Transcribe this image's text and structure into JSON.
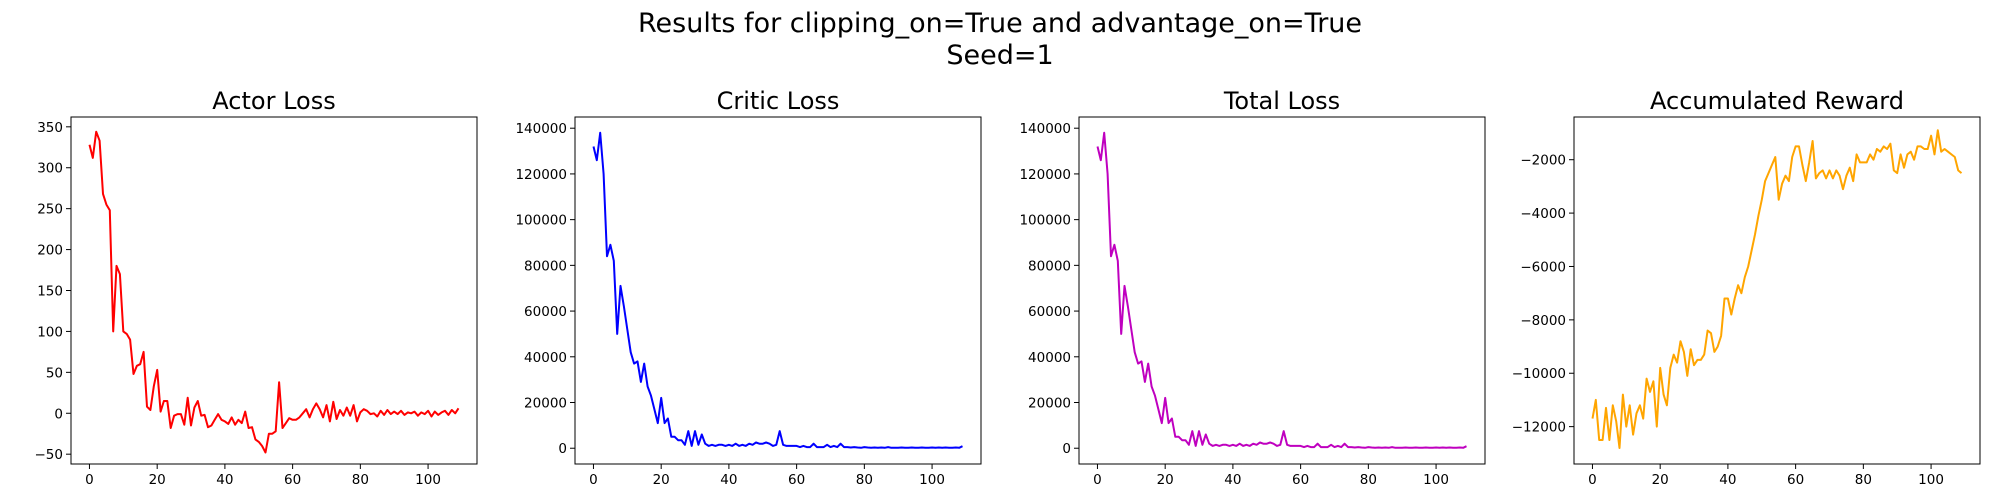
{
  "figure": {
    "title_line1": "Results for clipping_on=True and advantage_on=True",
    "title_line2": "Seed=1"
  },
  "chart_data": [
    {
      "type": "line",
      "title": "Actor Loss",
      "xlabel": "",
      "ylabel": "",
      "color": "#ff0000",
      "xlim": [
        -5.45,
        114.45
      ],
      "ylim": [
        -62,
        362
      ],
      "xticks": [
        0,
        20,
        40,
        60,
        80,
        100
      ],
      "yticks": [
        -50,
        0,
        50,
        100,
        150,
        200,
        250,
        300,
        350
      ],
      "grid": false,
      "x": [
        0,
        1,
        2,
        3,
        4,
        5,
        6,
        7,
        8,
        9,
        10,
        11,
        12,
        13,
        14,
        15,
        16,
        17,
        18,
        19,
        20,
        21,
        22,
        23,
        24,
        25,
        26,
        27,
        28,
        29,
        30,
        31,
        32,
        33,
        34,
        35,
        36,
        37,
        38,
        39,
        40,
        41,
        42,
        43,
        44,
        45,
        46,
        47,
        48,
        49,
        50,
        51,
        52,
        53,
        54,
        55,
        56,
        57,
        58,
        59,
        60,
        61,
        62,
        63,
        64,
        65,
        66,
        67,
        68,
        69,
        70,
        71,
        72,
        73,
        74,
        75,
        76,
        77,
        78,
        79,
        80,
        81,
        82,
        83,
        84,
        85,
        86,
        87,
        88,
        89,
        90,
        91,
        92,
        93,
        94,
        95,
        96,
        97,
        98,
        99,
        100,
        101,
        102,
        103,
        104,
        105,
        106,
        107,
        108,
        109
      ],
      "values": [
        328,
        312,
        344,
        333,
        268,
        255,
        248,
        100,
        180,
        170,
        100,
        97,
        90,
        48,
        58,
        60,
        75,
        8,
        4,
        33,
        53,
        2,
        15,
        15,
        -18,
        -3,
        -1,
        -1,
        -14,
        19,
        -15,
        7,
        15,
        -3,
        -2,
        -17,
        -15,
        -8,
        -1,
        -8,
        -10,
        -13,
        -5,
        -14,
        -8,
        -12,
        2,
        -18,
        -17,
        -32,
        -35,
        -40,
        -48,
        -25,
        -25,
        -22,
        38,
        -18,
        -12,
        -6,
        -8,
        -8,
        -5,
        0,
        5,
        -5,
        5,
        12,
        5,
        -5,
        10,
        -10,
        14,
        -7,
        4,
        -3,
        7,
        -3,
        10,
        -10,
        1,
        5,
        3,
        -1,
        0,
        -4,
        3,
        -2,
        4,
        -1,
        2,
        -1,
        3,
        -2,
        1,
        0,
        2,
        -3,
        1,
        -1,
        3,
        -4,
        2,
        -2,
        1,
        3,
        -2,
        4,
        0,
        6
      ],
      "series_name": ""
    },
    {
      "type": "line",
      "title": "Critic Loss",
      "xlabel": "",
      "ylabel": "",
      "color": "#0000ff",
      "xlim": [
        -5.45,
        114.45
      ],
      "ylim": [
        -6900,
        144900
      ],
      "xticks": [
        0,
        20,
        40,
        60,
        80,
        100
      ],
      "yticks": [
        0,
        20000,
        40000,
        60000,
        80000,
        100000,
        120000,
        140000
      ],
      "grid": false,
      "x": [
        0,
        1,
        2,
        3,
        4,
        5,
        6,
        7,
        8,
        9,
        10,
        11,
        12,
        13,
        14,
        15,
        16,
        17,
        18,
        19,
        20,
        21,
        22,
        23,
        24,
        25,
        26,
        27,
        28,
        29,
        30,
        31,
        32,
        33,
        34,
        35,
        36,
        37,
        38,
        39,
        40,
        41,
        42,
        43,
        44,
        45,
        46,
        47,
        48,
        49,
        50,
        51,
        52,
        53,
        54,
        55,
        56,
        57,
        58,
        59,
        60,
        61,
        62,
        63,
        64,
        65,
        66,
        67,
        68,
        69,
        70,
        71,
        72,
        73,
        74,
        75,
        76,
        77,
        78,
        79,
        80,
        81,
        82,
        83,
        84,
        85,
        86,
        87,
        88,
        89,
        90,
        91,
        92,
        93,
        94,
        95,
        96,
        97,
        98,
        99,
        100,
        101,
        102,
        103,
        104,
        105,
        106,
        107,
        108,
        109
      ],
      "values": [
        132000,
        126000,
        138000,
        120000,
        84000,
        89000,
        82000,
        50000,
        71000,
        62000,
        52000,
        42000,
        37000,
        38000,
        29000,
        37000,
        27000,
        23000,
        17000,
        11000,
        22000,
        11000,
        13000,
        5000,
        5000,
        3500,
        3500,
        1500,
        7500,
        1000,
        7500,
        1500,
        6000,
        2000,
        1000,
        1500,
        1000,
        1500,
        1500,
        1000,
        1500,
        1000,
        2000,
        1000,
        1500,
        1000,
        2000,
        1500,
        2500,
        2000,
        2000,
        2500,
        2000,
        1000,
        1500,
        7500,
        1500,
        1000,
        1000,
        1000,
        1000,
        500,
        1000,
        500,
        500,
        2000,
        500,
        500,
        500,
        1500,
        500,
        1000,
        500,
        2000,
        500,
        500,
        300,
        500,
        300,
        200,
        500,
        300,
        200,
        300,
        200,
        300,
        200,
        500,
        200,
        200,
        200,
        300,
        200,
        200,
        300,
        200,
        200,
        300,
        200,
        200,
        300,
        200,
        300,
        200,
        300,
        200,
        200,
        300,
        200,
        900
      ],
      "series_name": ""
    },
    {
      "type": "line",
      "title": "Total Loss",
      "xlabel": "",
      "ylabel": "",
      "color": "#bf00bf",
      "xlim": [
        -5.45,
        114.45
      ],
      "ylim": [
        -6900,
        144900
      ],
      "xticks": [
        0,
        20,
        40,
        60,
        80,
        100
      ],
      "yticks": [
        0,
        20000,
        40000,
        60000,
        80000,
        100000,
        120000,
        140000
      ],
      "grid": false,
      "x": [
        0,
        1,
        2,
        3,
        4,
        5,
        6,
        7,
        8,
        9,
        10,
        11,
        12,
        13,
        14,
        15,
        16,
        17,
        18,
        19,
        20,
        21,
        22,
        23,
        24,
        25,
        26,
        27,
        28,
        29,
        30,
        31,
        32,
        33,
        34,
        35,
        36,
        37,
        38,
        39,
        40,
        41,
        42,
        43,
        44,
        45,
        46,
        47,
        48,
        49,
        50,
        51,
        52,
        53,
        54,
        55,
        56,
        57,
        58,
        59,
        60,
        61,
        62,
        63,
        64,
        65,
        66,
        67,
        68,
        69,
        70,
        71,
        72,
        73,
        74,
        75,
        76,
        77,
        78,
        79,
        80,
        81,
        82,
        83,
        84,
        85,
        86,
        87,
        88,
        89,
        90,
        91,
        92,
        93,
        94,
        95,
        96,
        97,
        98,
        99,
        100,
        101,
        102,
        103,
        104,
        105,
        106,
        107,
        108,
        109
      ],
      "values": [
        132000,
        126000,
        138000,
        120000,
        84000,
        89000,
        82000,
        50000,
        71000,
        62000,
        52000,
        42000,
        37000,
        38000,
        29000,
        37000,
        27000,
        23000,
        17000,
        11000,
        22000,
        11000,
        13000,
        5000,
        5000,
        3500,
        3500,
        1500,
        7500,
        1000,
        7500,
        1500,
        6000,
        2000,
        1000,
        1500,
        1000,
        1500,
        1500,
        1000,
        1500,
        1000,
        2000,
        1000,
        1500,
        1000,
        2000,
        1500,
        2500,
        2000,
        2000,
        2500,
        2000,
        1000,
        1500,
        7500,
        1500,
        1000,
        1000,
        1000,
        1000,
        500,
        1000,
        500,
        500,
        2000,
        500,
        500,
        500,
        1500,
        500,
        1000,
        500,
        2000,
        500,
        500,
        300,
        500,
        300,
        200,
        500,
        300,
        200,
        300,
        200,
        300,
        200,
        500,
        200,
        200,
        200,
        300,
        200,
        200,
        300,
        200,
        200,
        300,
        200,
        200,
        300,
        200,
        300,
        200,
        300,
        200,
        200,
        300,
        200,
        900
      ],
      "series_name": ""
    },
    {
      "type": "line",
      "title": "Accumulated Reward",
      "xlabel": "",
      "ylabel": "",
      "color": "#ffa500",
      "xlim": [
        -5.45,
        114.45
      ],
      "ylim": [
        -13400,
        -400
      ],
      "xticks": [
        0,
        20,
        40,
        60,
        80,
        100
      ],
      "yticks": [
        -12000,
        -10000,
        -8000,
        -6000,
        -4000,
        -2000
      ],
      "grid": false,
      "x": [
        0,
        1,
        2,
        3,
        4,
        5,
        6,
        7,
        8,
        9,
        10,
        11,
        12,
        13,
        14,
        15,
        16,
        17,
        18,
        19,
        20,
        21,
        22,
        23,
        24,
        25,
        26,
        27,
        28,
        29,
        30,
        31,
        32,
        33,
        34,
        35,
        36,
        37,
        38,
        39,
        40,
        41,
        42,
        43,
        44,
        45,
        46,
        47,
        48,
        49,
        50,
        51,
        52,
        53,
        54,
        55,
        56,
        57,
        58,
        59,
        60,
        61,
        62,
        63,
        64,
        65,
        66,
        67,
        68,
        69,
        70,
        71,
        72,
        73,
        74,
        75,
        76,
        77,
        78,
        79,
        80,
        81,
        82,
        83,
        84,
        85,
        86,
        87,
        88,
        89,
        90,
        91,
        92,
        93,
        94,
        95,
        96,
        97,
        98,
        99,
        100,
        101,
        102,
        103,
        104,
        105,
        106,
        107,
        108,
        109
      ],
      "values": [
        -11700,
        -11000,
        -12500,
        -12500,
        -11300,
        -12500,
        -11200,
        -11800,
        -12800,
        -10800,
        -12000,
        -11200,
        -12300,
        -11500,
        -11200,
        -11700,
        -10200,
        -10700,
        -10300,
        -12000,
        -9800,
        -10800,
        -11200,
        -9800,
        -9300,
        -9600,
        -8800,
        -9200,
        -10100,
        -9100,
        -9700,
        -9500,
        -9500,
        -9300,
        -8400,
        -8500,
        -9200,
        -9000,
        -8600,
        -7200,
        -7200,
        -7800,
        -7200,
        -6700,
        -7000,
        -6400,
        -6000,
        -5400,
        -4800,
        -4100,
        -3500,
        -2800,
        -2500,
        -2200,
        -1900,
        -3500,
        -2900,
        -2600,
        -2800,
        -1900,
        -1500,
        -1500,
        -2200,
        -2800,
        -2100,
        -1300,
        -2700,
        -2500,
        -2400,
        -2700,
        -2400,
        -2700,
        -2400,
        -2600,
        -3100,
        -2600,
        -2300,
        -2800,
        -1800,
        -2100,
        -2100,
        -2100,
        -1800,
        -2000,
        -1600,
        -1700,
        -1500,
        -1600,
        -1400,
        -2400,
        -2500,
        -1800,
        -2300,
        -1800,
        -1700,
        -2000,
        -1500,
        -1500,
        -1600,
        -1600,
        -1100,
        -1800,
        -900,
        -1700,
        -1600,
        -1700,
        -1800,
        -1900,
        -2400,
        -2500
      ],
      "series_name": ""
    }
  ]
}
